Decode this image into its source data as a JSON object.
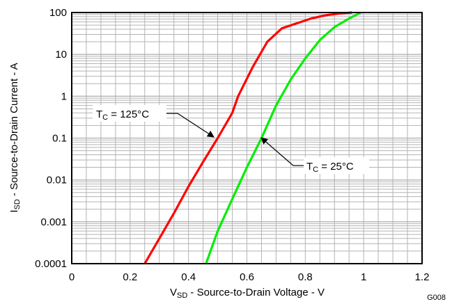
{
  "chart_data": {
    "type": "line",
    "title": "",
    "xlabel": {
      "main": "V",
      "sub": "SD",
      "rest": " - Source-to-Drain Voltage - V"
    },
    "ylabel": {
      "main": "I",
      "sub": "SD",
      "rest": " - Source-to-Drain Current - A"
    },
    "xlim": [
      0,
      1.2
    ],
    "ylim": [
      0.0001,
      100
    ],
    "yscale": "log",
    "grid": true,
    "x_ticks": [
      0,
      0.2,
      0.4,
      0.6,
      0.8,
      1,
      1.2
    ],
    "x_tick_labels": [
      "0",
      "0.2",
      "0.4",
      "0.6",
      "0.8",
      "1",
      "1.2"
    ],
    "y_ticks": [
      0.0001,
      0.001,
      0.01,
      0.1,
      1,
      10,
      100
    ],
    "y_tick_labels": [
      "0.0001",
      "0.001",
      "0.01",
      "0.1",
      "1",
      "10",
      "100"
    ],
    "series": [
      {
        "color": "#ff0000",
        "x": [
          0.25,
          0.3,
          0.35,
          0.4,
          0.45,
          0.5,
          0.55,
          0.57,
          0.62,
          0.67,
          0.72,
          0.77,
          0.82,
          0.87,
          0.92,
          0.96
        ],
        "y": [
          0.0001,
          0.0004,
          0.0016,
          0.007,
          0.027,
          0.1,
          0.4,
          1,
          5,
          20,
          42,
          55,
          72,
          86,
          95,
          100
        ]
      },
      {
        "color": "#00ee00",
        "x": [
          0.46,
          0.5,
          0.55,
          0.6,
          0.65,
          0.7,
          0.75,
          0.8,
          0.85,
          0.9,
          0.95,
          0.99
        ],
        "y": [
          0.0001,
          0.0006,
          0.0035,
          0.02,
          0.1,
          0.6,
          2.5,
          8,
          22,
          45,
          72,
          100
        ]
      }
    ],
    "annotations": [
      {
        "main": "T",
        "sub": "C",
        "rest": " = 125°C",
        "points_to": [
          0.49,
          0.1
        ]
      },
      {
        "main": "T",
        "sub": "C",
        "rest": " = 25°C",
        "points_to": [
          0.65,
          0.12
        ]
      }
    ],
    "figure_id": "G008"
  }
}
